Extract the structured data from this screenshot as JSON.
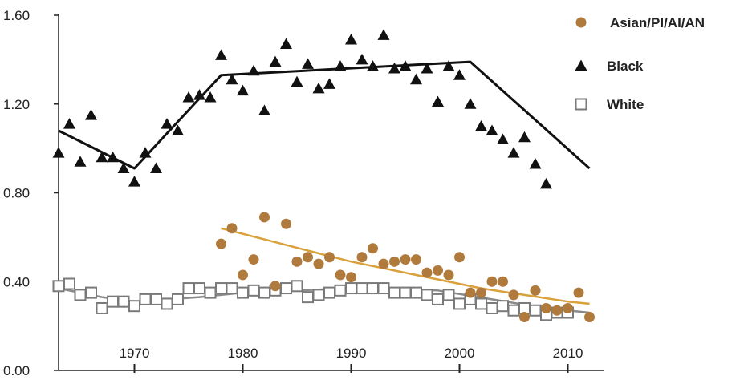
{
  "chart_data": {
    "type": "scatter",
    "title": "",
    "xlabel": "",
    "ylabel": "",
    "xlim": [
      1963,
      2013
    ],
    "ylim": [
      0,
      1.6
    ],
    "x_ticks": [
      1970,
      1980,
      1990,
      2000,
      2010
    ],
    "y_ticks": [
      0.0,
      0.4,
      0.8,
      1.2,
      1.6
    ],
    "y_tick_labels": [
      "0.00",
      "0.40",
      "0.80",
      "1.20",
      "1.60"
    ],
    "grid": false,
    "legend_position": "top-right",
    "series": [
      {
        "name": "Asian/PI/AI/AN",
        "marker": "circle",
        "color": "#b07a3c",
        "trend_color": "#d9a13a",
        "points": [
          [
            1978,
            0.57
          ],
          [
            1979,
            0.64
          ],
          [
            1980,
            0.43
          ],
          [
            1981,
            0.5
          ],
          [
            1982,
            0.69
          ],
          [
            1983,
            0.38
          ],
          [
            1984,
            0.66
          ],
          [
            1985,
            0.49
          ],
          [
            1986,
            0.51
          ],
          [
            1987,
            0.48
          ],
          [
            1988,
            0.51
          ],
          [
            1989,
            0.43
          ],
          [
            1990,
            0.42
          ],
          [
            1991,
            0.51
          ],
          [
            1992,
            0.55
          ],
          [
            1993,
            0.48
          ],
          [
            1994,
            0.49
          ],
          [
            1995,
            0.5
          ],
          [
            1996,
            0.5
          ],
          [
            1997,
            0.44
          ],
          [
            1998,
            0.45
          ],
          [
            1999,
            0.43
          ],
          [
            2000,
            0.51
          ],
          [
            2001,
            0.35
          ],
          [
            2002,
            0.35
          ],
          [
            2003,
            0.4
          ],
          [
            2004,
            0.4
          ],
          [
            2005,
            0.34
          ],
          [
            2006,
            0.24
          ],
          [
            2007,
            0.36
          ],
          [
            2008,
            0.28
          ],
          [
            2009,
            0.27
          ],
          [
            2010,
            0.28
          ],
          [
            2011,
            0.35
          ],
          [
            2012,
            0.24
          ]
        ],
        "trend": [
          [
            1978,
            0.64
          ],
          [
            1982,
            0.59
          ],
          [
            1986,
            0.54
          ],
          [
            1990,
            0.49
          ],
          [
            1994,
            0.45
          ],
          [
            1998,
            0.41
          ],
          [
            2002,
            0.37
          ],
          [
            2006,
            0.34
          ],
          [
            2010,
            0.31
          ],
          [
            2012,
            0.3
          ]
        ]
      },
      {
        "name": "Black",
        "marker": "triangle",
        "color": "#111111",
        "trend_color": "#111111",
        "points": [
          [
            1963,
            0.98
          ],
          [
            1964,
            1.11
          ],
          [
            1965,
            0.94
          ],
          [
            1966,
            1.15
          ],
          [
            1967,
            0.96
          ],
          [
            1968,
            0.96
          ],
          [
            1969,
            0.91
          ],
          [
            1970,
            0.85
          ],
          [
            1971,
            0.98
          ],
          [
            1972,
            0.91
          ],
          [
            1973,
            1.11
          ],
          [
            1974,
            1.08
          ],
          [
            1975,
            1.23
          ],
          [
            1976,
            1.24
          ],
          [
            1977,
            1.23
          ],
          [
            1978,
            1.42
          ],
          [
            1979,
            1.31
          ],
          [
            1980,
            1.26
          ],
          [
            1981,
            1.35
          ],
          [
            1982,
            1.17
          ],
          [
            1983,
            1.39
          ],
          [
            1984,
            1.47
          ],
          [
            1985,
            1.3
          ],
          [
            1986,
            1.38
          ],
          [
            1987,
            1.27
          ],
          [
            1988,
            1.29
          ],
          [
            1989,
            1.37
          ],
          [
            1990,
            1.49
          ],
          [
            1991,
            1.4
          ],
          [
            1992,
            1.37
          ],
          [
            1993,
            1.51
          ],
          [
            1994,
            1.36
          ],
          [
            1995,
            1.37
          ],
          [
            1996,
            1.31
          ],
          [
            1997,
            1.36
          ],
          [
            1998,
            1.21
          ],
          [
            1999,
            1.37
          ],
          [
            2000,
            1.33
          ],
          [
            2001,
            1.2
          ],
          [
            2002,
            1.1
          ],
          [
            2003,
            1.08
          ],
          [
            2004,
            1.04
          ],
          [
            2005,
            0.98
          ],
          [
            2006,
            1.05
          ],
          [
            2007,
            0.93
          ],
          [
            2008,
            0.84
          ]
        ],
        "trend": [
          [
            1963,
            1.08
          ],
          [
            1970,
            0.91
          ],
          [
            1978,
            1.33
          ],
          [
            2001,
            1.39
          ],
          [
            2012,
            0.91
          ]
        ]
      },
      {
        "name": "White",
        "marker": "square-open",
        "color": "#7a7a7a",
        "trend_color": "#8a8a8a",
        "points": [
          [
            1963,
            0.38
          ],
          [
            1964,
            0.39
          ],
          [
            1965,
            0.34
          ],
          [
            1966,
            0.35
          ],
          [
            1967,
            0.28
          ],
          [
            1968,
            0.31
          ],
          [
            1969,
            0.31
          ],
          [
            1970,
            0.29
          ],
          [
            1971,
            0.32
          ],
          [
            1972,
            0.32
          ],
          [
            1973,
            0.3
          ],
          [
            1974,
            0.32
          ],
          [
            1975,
            0.37
          ],
          [
            1976,
            0.37
          ],
          [
            1977,
            0.35
          ],
          [
            1978,
            0.37
          ],
          [
            1979,
            0.37
          ],
          [
            1980,
            0.35
          ],
          [
            1981,
            0.36
          ],
          [
            1982,
            0.35
          ],
          [
            1983,
            0.36
          ],
          [
            1984,
            0.37
          ],
          [
            1985,
            0.38
          ],
          [
            1986,
            0.33
          ],
          [
            1987,
            0.34
          ],
          [
            1988,
            0.35
          ],
          [
            1989,
            0.36
          ],
          [
            1990,
            0.37
          ],
          [
            1991,
            0.37
          ],
          [
            1992,
            0.37
          ],
          [
            1993,
            0.37
          ],
          [
            1994,
            0.35
          ],
          [
            1995,
            0.35
          ],
          [
            1996,
            0.35
          ],
          [
            1997,
            0.34
          ],
          [
            1998,
            0.32
          ],
          [
            1999,
            0.34
          ],
          [
            2000,
            0.3
          ],
          [
            2001,
            0.32
          ],
          [
            2002,
            0.3
          ],
          [
            2003,
            0.28
          ],
          [
            2004,
            0.29
          ],
          [
            2005,
            0.27
          ],
          [
            2006,
            0.28
          ],
          [
            2007,
            0.27
          ],
          [
            2008,
            0.25
          ],
          [
            2009,
            0.26
          ],
          [
            2010,
            0.26
          ]
        ],
        "trend": [
          [
            1963,
            0.37
          ],
          [
            1967,
            0.33
          ],
          [
            1970,
            0.31
          ],
          [
            1976,
            0.33
          ],
          [
            1980,
            0.35
          ],
          [
            1990,
            0.37
          ],
          [
            1998,
            0.36
          ],
          [
            2003,
            0.32
          ],
          [
            2008,
            0.28
          ],
          [
            2012,
            0.26
          ]
        ]
      }
    ]
  }
}
